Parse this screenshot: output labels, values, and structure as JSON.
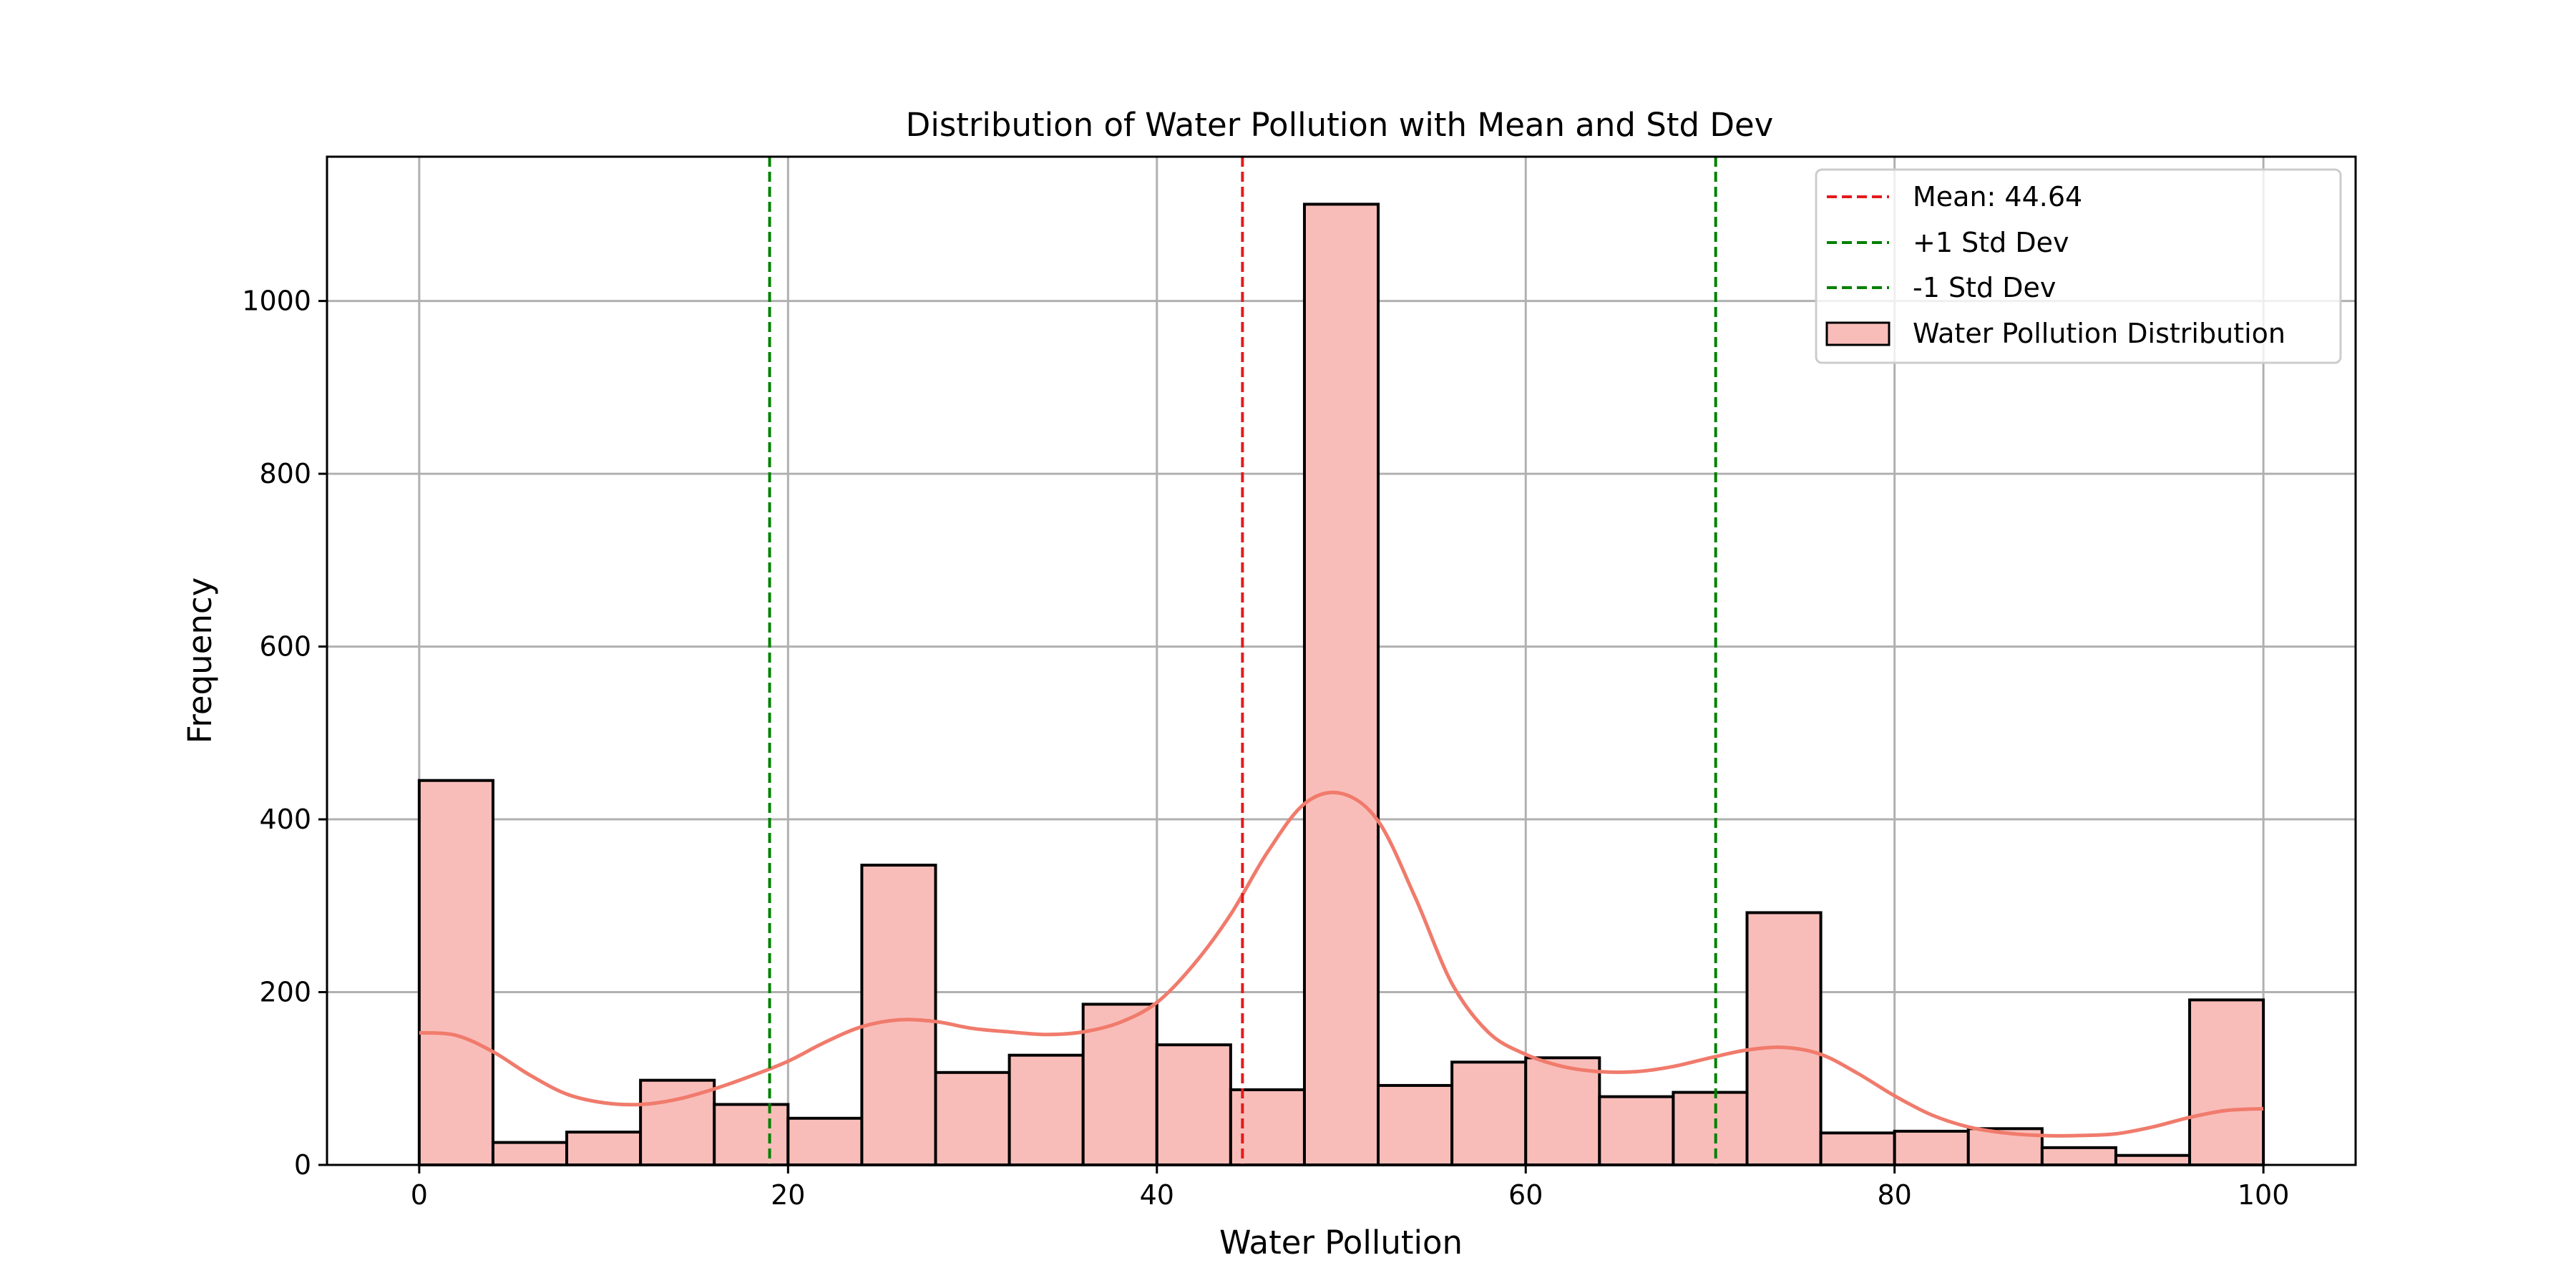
{
  "chart_data": {
    "type": "bar",
    "title": "Distribution of Water Pollution with Mean and Std Dev",
    "xlabel": "Water Pollution",
    "ylabel": "Frequency",
    "xlim": [
      -5,
      105
    ],
    "ylim": [
      0,
      1167
    ],
    "xticks": [
      0,
      20,
      40,
      60,
      80,
      100
    ],
    "yticks": [
      0,
      200,
      400,
      600,
      800,
      1000
    ],
    "grid": true,
    "legend_position": "top-right",
    "bins": [
      {
        "x0": 0,
        "x1": 4,
        "count": 445
      },
      {
        "x0": 4,
        "x1": 8,
        "count": 26
      },
      {
        "x0": 8,
        "x1": 12,
        "count": 38
      },
      {
        "x0": 12,
        "x1": 16,
        "count": 98
      },
      {
        "x0": 16,
        "x1": 20,
        "count": 70
      },
      {
        "x0": 20,
        "x1": 24,
        "count": 54
      },
      {
        "x0": 24,
        "x1": 28,
        "count": 347
      },
      {
        "x0": 28,
        "x1": 32,
        "count": 107
      },
      {
        "x0": 32,
        "x1": 36,
        "count": 127
      },
      {
        "x0": 36,
        "x1": 40,
        "count": 186
      },
      {
        "x0": 40,
        "x1": 44,
        "count": 139
      },
      {
        "x0": 44,
        "x1": 48,
        "count": 87
      },
      {
        "x0": 48,
        "x1": 52,
        "count": 1112
      },
      {
        "x0": 52,
        "x1": 56,
        "count": 92
      },
      {
        "x0": 56,
        "x1": 60,
        "count": 119
      },
      {
        "x0": 60,
        "x1": 64,
        "count": 124
      },
      {
        "x0": 64,
        "x1": 68,
        "count": 79
      },
      {
        "x0": 68,
        "x1": 72,
        "count": 84
      },
      {
        "x0": 72,
        "x1": 76,
        "count": 292
      },
      {
        "x0": 76,
        "x1": 80,
        "count": 37
      },
      {
        "x0": 80,
        "x1": 84,
        "count": 39
      },
      {
        "x0": 84,
        "x1": 88,
        "count": 42
      },
      {
        "x0": 88,
        "x1": 92,
        "count": 20
      },
      {
        "x0": 92,
        "x1": 96,
        "count": 11
      },
      {
        "x0": 96,
        "x1": 100,
        "count": 191
      }
    ],
    "kde": {
      "x": [
        0,
        2,
        4,
        6,
        8,
        10,
        12,
        14,
        16,
        18,
        20,
        22,
        24,
        26,
        28,
        30,
        32,
        34,
        36,
        38,
        40,
        42,
        44,
        46,
        48,
        50,
        52,
        54,
        56,
        58,
        60,
        62,
        64,
        66,
        68,
        70,
        72,
        74,
        76,
        78,
        80,
        82,
        84,
        86,
        88,
        90,
        92,
        94,
        96,
        98,
        100
      ],
      "y": [
        153,
        150,
        131,
        104,
        82,
        72,
        70,
        76,
        88,
        103,
        120,
        142,
        160,
        168,
        166,
        158,
        154,
        151,
        154,
        165,
        188,
        232,
        290,
        362,
        418,
        430,
        398,
        310,
        210,
        153,
        128,
        114,
        108,
        108,
        114,
        124,
        133,
        136,
        128,
        106,
        80,
        58,
        44,
        37,
        34,
        34,
        36,
        44,
        55,
        63,
        65
      ]
    },
    "mean": 44.64,
    "plus_1_std": 70.3,
    "minus_1_std": 19.0,
    "legend": {
      "mean_label": "Mean: 44.64",
      "plus_std_label": "+1 Std Dev",
      "minus_std_label": "-1 Std Dev",
      "hist_label": "Water Pollution Distribution"
    },
    "colors": {
      "bar_fill": "#f9bdb9",
      "bar_edge": "#000000",
      "kde_line": "#f07b6c",
      "mean_line": "#e41a1c",
      "std_line": "#008000",
      "grid": "#b0b0b0"
    }
  }
}
